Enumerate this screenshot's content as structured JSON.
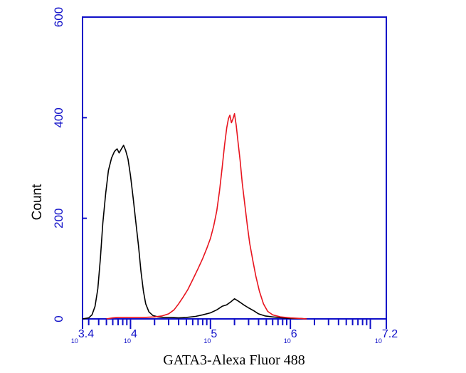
{
  "chart_data": {
    "type": "line",
    "title": "",
    "xlabel": "GATA3-Alexa Fluor 488",
    "ylabel": "Count",
    "x_scale": "log",
    "xlim": [
      2511.9,
      15848932
    ],
    "ylim": [
      0,
      600
    ],
    "y_ticks": [
      0,
      200,
      400,
      600
    ],
    "x_tick_labels": [
      {
        "value": 2511.9,
        "base": "10",
        "exp": "3.4"
      },
      {
        "value": 10000,
        "base": "10",
        "exp": "4"
      },
      {
        "value": 100000,
        "base": "10",
        "exp": "5"
      },
      {
        "value": 1000000,
        "base": "10",
        "exp": "6"
      },
      {
        "value": 15848932,
        "base": "10",
        "exp": "7.2"
      }
    ],
    "grid": false,
    "legend": "none",
    "axis_color": "#1010c8",
    "series": [
      {
        "color": "#000000",
        "points": [
          [
            2512,
            0
          ],
          [
            3000,
            2
          ],
          [
            3300,
            8
          ],
          [
            3600,
            25
          ],
          [
            3900,
            60
          ],
          [
            4200,
            120
          ],
          [
            4500,
            190
          ],
          [
            4900,
            250
          ],
          [
            5300,
            295
          ],
          [
            5800,
            320
          ],
          [
            6300,
            333
          ],
          [
            6800,
            338
          ],
          [
            7200,
            330
          ],
          [
            7700,
            338
          ],
          [
            8200,
            345
          ],
          [
            8700,
            335
          ],
          [
            9300,
            318
          ],
          [
            10000,
            285
          ],
          [
            10800,
            240
          ],
          [
            11700,
            190
          ],
          [
            12600,
            145
          ],
          [
            13500,
            95
          ],
          [
            14500,
            55
          ],
          [
            15500,
            30
          ],
          [
            17000,
            14
          ],
          [
            19000,
            7
          ],
          [
            22000,
            4
          ],
          [
            26000,
            3
          ],
          [
            32000,
            3
          ],
          [
            40000,
            2
          ],
          [
            50000,
            3
          ],
          [
            65000,
            5
          ],
          [
            80000,
            8
          ],
          [
            100000,
            12
          ],
          [
            120000,
            18
          ],
          [
            140000,
            25
          ],
          [
            160000,
            28
          ],
          [
            180000,
            34
          ],
          [
            200000,
            40
          ],
          [
            220000,
            36
          ],
          [
            240000,
            32
          ],
          [
            260000,
            28
          ],
          [
            300000,
            22
          ],
          [
            350000,
            16
          ],
          [
            400000,
            10
          ],
          [
            480000,
            6
          ],
          [
            600000,
            4
          ],
          [
            800000,
            2
          ],
          [
            1000000,
            1
          ],
          [
            1300000,
            1
          ],
          [
            1600000,
            0
          ]
        ]
      },
      {
        "color": "#e8141e",
        "points": [
          [
            5000,
            0
          ],
          [
            6000,
            2
          ],
          [
            7000,
            3
          ],
          [
            10000,
            3
          ],
          [
            15000,
            3
          ],
          [
            20000,
            4
          ],
          [
            25000,
            6
          ],
          [
            30000,
            10
          ],
          [
            35000,
            18
          ],
          [
            40000,
            30
          ],
          [
            45000,
            42
          ],
          [
            52000,
            58
          ],
          [
            60000,
            78
          ],
          [
            70000,
            100
          ],
          [
            80000,
            120
          ],
          [
            90000,
            140
          ],
          [
            100000,
            160
          ],
          [
            110000,
            185
          ],
          [
            120000,
            215
          ],
          [
            130000,
            255
          ],
          [
            140000,
            300
          ],
          [
            150000,
            345
          ],
          [
            160000,
            380
          ],
          [
            168000,
            398
          ],
          [
            175000,
            405
          ],
          [
            183000,
            390
          ],
          [
            192000,
            398
          ],
          [
            200000,
            408
          ],
          [
            210000,
            385
          ],
          [
            220000,
            355
          ],
          [
            235000,
            315
          ],
          [
            250000,
            270
          ],
          [
            270000,
            225
          ],
          [
            290000,
            185
          ],
          [
            310000,
            150
          ],
          [
            340000,
            115
          ],
          [
            370000,
            85
          ],
          [
            410000,
            55
          ],
          [
            460000,
            30
          ],
          [
            520000,
            15
          ],
          [
            600000,
            8
          ],
          [
            750000,
            4
          ],
          [
            1000000,
            2
          ],
          [
            1300000,
            1
          ],
          [
            1600000,
            0
          ]
        ]
      }
    ]
  }
}
